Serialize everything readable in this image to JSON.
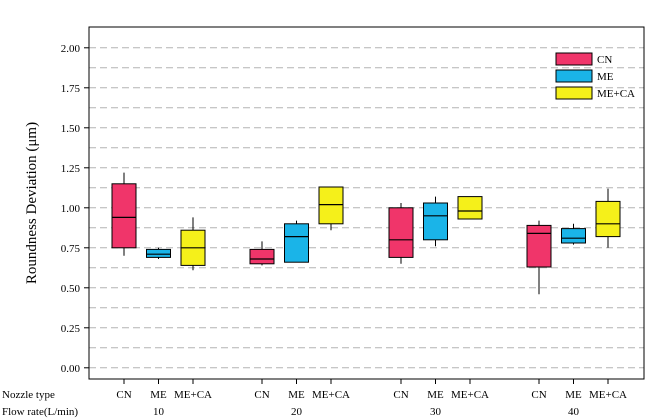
{
  "chart_data": {
    "type": "box",
    "ylabel": "Roundness Deviation (μm)",
    "ylim": [
      -0.07,
      2.13
    ],
    "y_ticks": [
      "0.00",
      "0.25",
      "0.50",
      "0.75",
      "1.00",
      "1.25",
      "1.50",
      "1.75",
      "2.00"
    ],
    "y_tick_values": [
      0,
      0.25,
      0.5,
      0.75,
      1.0,
      1.25,
      1.5,
      1.75,
      2.0
    ],
    "grid": true,
    "legend_position": "top-right",
    "row_labels": {
      "nozzle_type": "Nozzle type",
      "flow_rate": "Flow rate(L/min)"
    },
    "groups": [
      "10",
      "20",
      "30",
      "40"
    ],
    "series": [
      {
        "name": "CN",
        "color": "#f0356a",
        "boxes": [
          {
            "group": "10",
            "min": 0.7,
            "q1": 0.75,
            "median": 0.94,
            "q3": 1.15,
            "max": 1.22
          },
          {
            "group": "20",
            "min": 0.64,
            "q1": 0.65,
            "median": 0.68,
            "q3": 0.74,
            "max": 0.79
          },
          {
            "group": "30",
            "min": 0.65,
            "q1": 0.69,
            "median": 0.8,
            "q3": 1.0,
            "max": 1.03
          },
          {
            "group": "40",
            "min": 0.46,
            "q1": 0.63,
            "median": 0.84,
            "q3": 0.89,
            "max": 0.92
          }
        ]
      },
      {
        "name": "ME",
        "color": "#1ab4e8",
        "boxes": [
          {
            "group": "10",
            "min": 0.68,
            "q1": 0.69,
            "median": 0.71,
            "q3": 0.74,
            "max": 0.75
          },
          {
            "group": "20",
            "min": 0.66,
            "q1": 0.66,
            "median": 0.82,
            "q3": 0.9,
            "max": 0.92
          },
          {
            "group": "30",
            "min": 0.76,
            "q1": 0.8,
            "median": 0.95,
            "q3": 1.03,
            "max": 1.07
          },
          {
            "group": "40",
            "min": 0.77,
            "q1": 0.78,
            "median": 0.81,
            "q3": 0.87,
            "max": 0.9
          }
        ]
      },
      {
        "name": "ME+CA",
        "color": "#f5f01a",
        "boxes": [
          {
            "group": "10",
            "min": 0.61,
            "q1": 0.64,
            "median": 0.75,
            "q3": 0.86,
            "max": 0.94
          },
          {
            "group": "20",
            "min": 0.86,
            "q1": 0.9,
            "median": 1.02,
            "q3": 1.13,
            "max": 1.13
          },
          {
            "group": "30",
            "min": 0.93,
            "q1": 0.93,
            "median": 0.98,
            "q3": 1.07,
            "max": 1.07
          },
          {
            "group": "40",
            "min": 0.75,
            "q1": 0.82,
            "median": 0.9,
            "q3": 1.04,
            "max": 1.12
          }
        ]
      }
    ]
  }
}
